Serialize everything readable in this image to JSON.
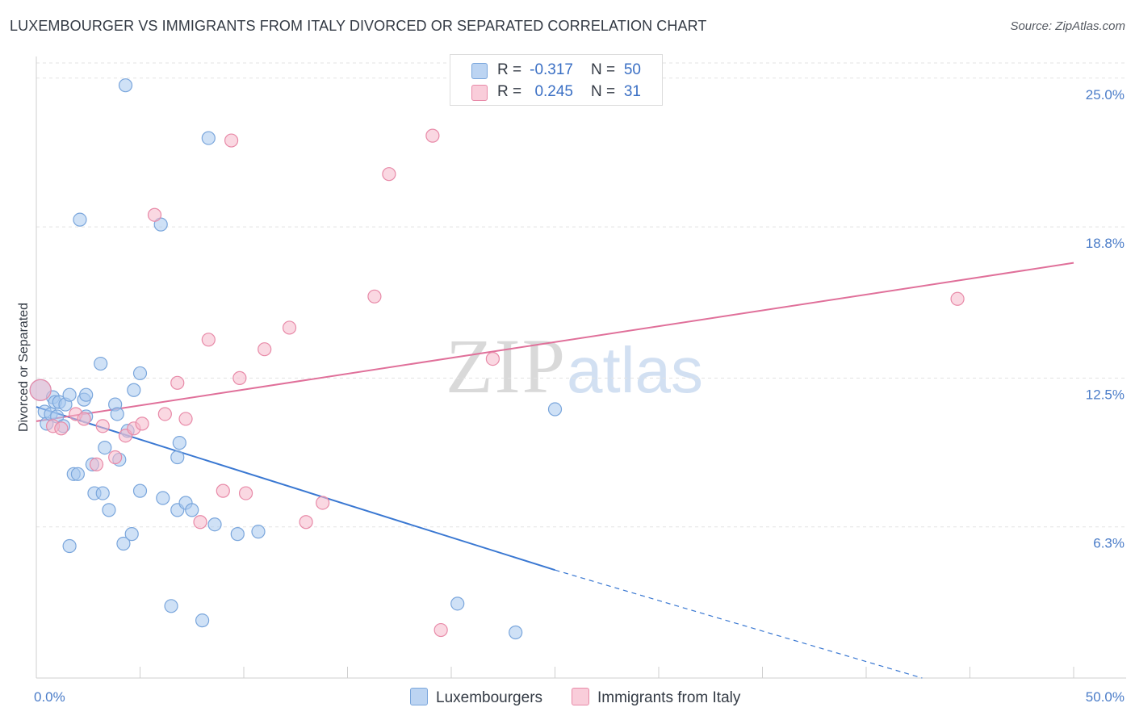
{
  "title": "LUXEMBOURGER VS IMMIGRANTS FROM ITALY DIVORCED OR SEPARATED CORRELATION CHART",
  "source": "Source: ZipAtlas.com",
  "watermark": {
    "zip": "ZIP",
    "atlas": "atlas"
  },
  "legend": {
    "r_label": "R =",
    "n_label": "N =",
    "series": [
      {
        "r": "-0.317",
        "n": "50",
        "color": "#a8c8ef"
      },
      {
        "r": "0.245",
        "n": "31",
        "color": "#f5b8ca"
      }
    ]
  },
  "bottom_legend": [
    "Luxembourgers",
    "Immigrants from Italy"
  ],
  "chart_data": {
    "type": "scatter",
    "title": "LUXEMBOURGER VS IMMIGRANTS FROM ITALY DIVORCED OR SEPARATED CORRELATION CHART",
    "xlabel": "",
    "ylabel": "Divorced or Separated",
    "xlim": [
      0,
      50
    ],
    "ylim": [
      0,
      25.9
    ],
    "x_tick_labels": [
      "0.0%",
      "50.0%"
    ],
    "y_ticks": [
      6.3,
      12.5,
      18.8,
      25.0
    ],
    "y_tick_labels": [
      "6.3%",
      "12.5%",
      "18.8%",
      "25.0%"
    ],
    "grid": true,
    "series": [
      {
        "name": "Luxembourgers",
        "color": "#a8c8ef",
        "stroke": "#7aa6dc",
        "points": [
          [
            0.2,
            12.0
          ],
          [
            0.4,
            11.1
          ],
          [
            0.5,
            10.6
          ],
          [
            0.7,
            11.0
          ],
          [
            0.8,
            11.7
          ],
          [
            0.9,
            11.5
          ],
          [
            1.0,
            10.9
          ],
          [
            1.1,
            11.5
          ],
          [
            1.3,
            10.5
          ],
          [
            1.4,
            11.4
          ],
          [
            1.6,
            11.8
          ],
          [
            1.8,
            8.5
          ],
          [
            2.0,
            8.5
          ],
          [
            2.1,
            19.1
          ],
          [
            2.3,
            11.6
          ],
          [
            2.4,
            11.8
          ],
          [
            2.4,
            10.9
          ],
          [
            2.7,
            8.9
          ],
          [
            2.8,
            7.7
          ],
          [
            3.1,
            13.1
          ],
          [
            3.2,
            7.7
          ],
          [
            3.3,
            9.6
          ],
          [
            3.5,
            7.0
          ],
          [
            3.8,
            11.4
          ],
          [
            3.9,
            11.0
          ],
          [
            4.0,
            9.1
          ],
          [
            4.2,
            5.6
          ],
          [
            4.3,
            24.7
          ],
          [
            4.4,
            10.3
          ],
          [
            4.6,
            6.0
          ],
          [
            4.7,
            12.0
          ],
          [
            5.0,
            12.7
          ],
          [
            5.0,
            7.8
          ],
          [
            6.0,
            18.9
          ],
          [
            6.1,
            7.5
          ],
          [
            6.5,
            3.0
          ],
          [
            6.8,
            7.0
          ],
          [
            6.8,
            9.2
          ],
          [
            6.9,
            9.8
          ],
          [
            7.2,
            7.3
          ],
          [
            8.0,
            2.4
          ],
          [
            8.3,
            22.5
          ],
          [
            8.6,
            6.4
          ],
          [
            9.7,
            6.0
          ],
          [
            10.7,
            6.1
          ],
          [
            1.6,
            5.5
          ],
          [
            20.3,
            3.1
          ],
          [
            23.1,
            1.9
          ],
          [
            25.0,
            11.2
          ],
          [
            7.5,
            7.0
          ]
        ],
        "trend": {
          "x0": 0.0,
          "y0": 11.3,
          "x1": 25.0,
          "y1": 4.5,
          "dashed_to": {
            "x": 42.7,
            "y": 0.0
          }
        }
      },
      {
        "name": "Immigrants from Italy",
        "color": "#f5b8ca",
        "stroke": "#e88aa8",
        "points": [
          [
            0.2,
            12.0
          ],
          [
            0.8,
            10.5
          ],
          [
            1.2,
            10.4
          ],
          [
            1.9,
            11.0
          ],
          [
            2.3,
            10.8
          ],
          [
            2.9,
            8.9
          ],
          [
            3.2,
            10.5
          ],
          [
            3.8,
            9.2
          ],
          [
            4.3,
            10.1
          ],
          [
            4.7,
            10.4
          ],
          [
            5.1,
            10.6
          ],
          [
            5.7,
            19.3
          ],
          [
            6.2,
            11.0
          ],
          [
            6.8,
            12.3
          ],
          [
            7.2,
            10.8
          ],
          [
            7.9,
            6.5
          ],
          [
            8.3,
            14.1
          ],
          [
            9.0,
            7.8
          ],
          [
            9.4,
            22.4
          ],
          [
            9.8,
            12.5
          ],
          [
            10.1,
            7.7
          ],
          [
            11.0,
            13.7
          ],
          [
            12.2,
            14.6
          ],
          [
            13.0,
            6.5
          ],
          [
            13.8,
            7.3
          ],
          [
            16.3,
            15.9
          ],
          [
            17.0,
            21.0
          ],
          [
            19.1,
            22.6
          ],
          [
            19.5,
            2.0
          ],
          [
            22.0,
            13.3
          ],
          [
            44.4,
            15.8
          ]
        ],
        "trend": {
          "x0": 0.0,
          "y0": 10.7,
          "x1": 50.0,
          "y1": 17.3
        }
      }
    ]
  }
}
